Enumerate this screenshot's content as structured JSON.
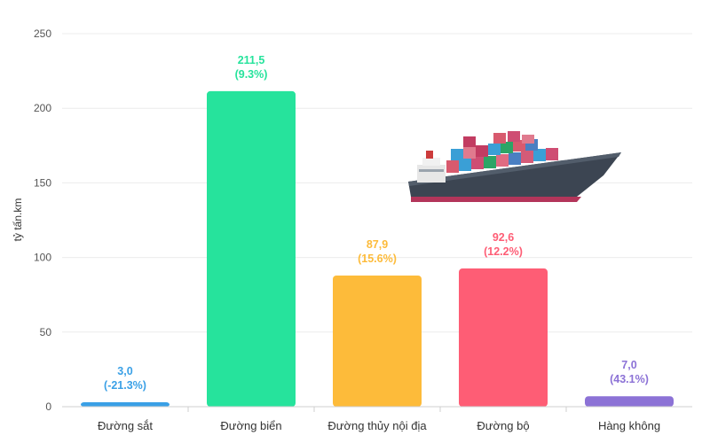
{
  "chart_data": {
    "type": "bar",
    "ylabel": "tỷ tấn.km",
    "ylim": [
      0,
      250
    ],
    "yticks": [
      0,
      50,
      100,
      150,
      200,
      250
    ],
    "ytick_labels": [
      "0",
      "50",
      "100",
      "150",
      "200",
      "250"
    ],
    "grid": true,
    "categories": [
      "Đường sắt",
      "Đường biển",
      "Đường thủy nội địa",
      "Đường bộ",
      "Hàng không"
    ],
    "values": [
      3.0,
      211.5,
      87.9,
      92.6,
      7.0
    ],
    "value_labels": [
      "3,0",
      "211,5",
      "87,9",
      "92,6",
      "7,0"
    ],
    "change_labels": [
      "(-21.3%)",
      "(9.3%)",
      "(15.6%)",
      "(12.2%)",
      "(43.1%)"
    ],
    "colors": [
      "#3aa0e6",
      "#26e39c",
      "#fdbb3a",
      "#fe5d75",
      "#8c72d6"
    ]
  },
  "illustration": {
    "icon": "container-ship-icon"
  }
}
